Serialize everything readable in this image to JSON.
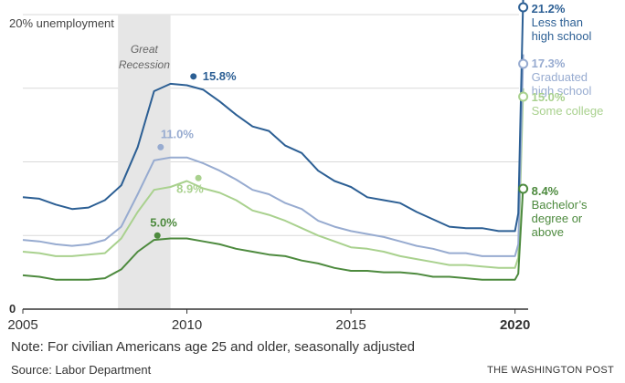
{
  "chart_data": {
    "type": "line",
    "ylabel": "20% unemployment",
    "xlim": [
      2005,
      2020.4
    ],
    "ylim": [
      0,
      20
    ],
    "grid": true,
    "x_ticks": [
      {
        "value": 2005,
        "label": "2005",
        "bold": false
      },
      {
        "value": 2010,
        "label": "2010",
        "bold": false
      },
      {
        "value": 2015,
        "label": "2015",
        "bold": false
      },
      {
        "value": 2020,
        "label": "2020",
        "bold": true
      }
    ],
    "y_tick_zero": "0",
    "y_gridlines": [
      0,
      5,
      10,
      15,
      20
    ],
    "shaded_period": {
      "start": 2007.9,
      "end": 2009.5,
      "label_line1": "Great",
      "label_line2": "Recession"
    },
    "series": [
      {
        "name": "Less than high school",
        "label_lines": [
          "Less than",
          "high school"
        ],
        "end_value": 21.2,
        "end_label": "21.2%",
        "peak": {
          "x": 2010.2,
          "y": 15.8,
          "label": "15.8%"
        },
        "color": "#2c5f94",
        "x": [
          2005.0,
          2005.5,
          2006.0,
          2006.5,
          2007.0,
          2007.5,
          2008.0,
          2008.5,
          2009.0,
          2009.5,
          2010.0,
          2010.5,
          2011.0,
          2011.5,
          2012.0,
          2012.5,
          2013.0,
          2013.5,
          2014.0,
          2014.5,
          2015.0,
          2015.5,
          2016.0,
          2016.5,
          2017.0,
          2017.5,
          2018.0,
          2018.5,
          2019.0,
          2019.5,
          2020.0,
          2020.1,
          2020.25
        ],
        "y": [
          7.6,
          7.5,
          7.1,
          6.8,
          6.9,
          7.4,
          8.4,
          11.0,
          14.8,
          15.3,
          15.2,
          14.9,
          14.1,
          13.2,
          12.4,
          12.1,
          11.1,
          10.6,
          9.4,
          8.7,
          8.3,
          7.6,
          7.4,
          7.2,
          6.6,
          6.1,
          5.6,
          5.5,
          5.5,
          5.3,
          5.3,
          6.5,
          21.2
        ]
      },
      {
        "name": "Graduated high school",
        "label_lines": [
          "Graduated",
          "high school"
        ],
        "end_value": 17.3,
        "end_label": "17.3%",
        "peak": {
          "x": 2009.2,
          "y": 11.0,
          "label": "11.0%"
        },
        "color": "#97abd0",
        "x": [
          2005.0,
          2005.5,
          2006.0,
          2006.5,
          2007.0,
          2007.5,
          2008.0,
          2008.5,
          2009.0,
          2009.5,
          2010.0,
          2010.5,
          2011.0,
          2011.5,
          2012.0,
          2012.5,
          2013.0,
          2013.5,
          2014.0,
          2014.5,
          2015.0,
          2015.5,
          2016.0,
          2016.5,
          2017.0,
          2017.5,
          2018.0,
          2018.5,
          2019.0,
          2019.5,
          2020.0,
          2020.1,
          2020.25
        ],
        "y": [
          4.7,
          4.6,
          4.4,
          4.3,
          4.4,
          4.7,
          5.6,
          7.8,
          10.1,
          10.3,
          10.3,
          9.9,
          9.4,
          8.8,
          8.1,
          7.8,
          7.2,
          6.8,
          6.0,
          5.6,
          5.3,
          5.1,
          4.9,
          4.6,
          4.3,
          4.1,
          3.8,
          3.8,
          3.6,
          3.6,
          3.6,
          4.4,
          17.3
        ]
      },
      {
        "name": "Some college",
        "label_lines": [
          "Some college"
        ],
        "end_value": 15.0,
        "end_label": "15.0%",
        "peak": {
          "x": 2010.35,
          "y": 8.9,
          "label": "8.9%"
        },
        "color": "#a9d18e",
        "x": [
          2005.0,
          2005.5,
          2006.0,
          2006.5,
          2007.0,
          2007.5,
          2008.0,
          2008.5,
          2009.0,
          2009.5,
          2010.0,
          2010.5,
          2011.0,
          2011.5,
          2012.0,
          2012.5,
          2013.0,
          2013.5,
          2014.0,
          2014.5,
          2015.0,
          2015.5,
          2016.0,
          2016.5,
          2017.0,
          2017.5,
          2018.0,
          2018.5,
          2019.0,
          2019.5,
          2020.0,
          2020.1,
          2020.25
        ],
        "y": [
          3.9,
          3.8,
          3.6,
          3.6,
          3.7,
          3.8,
          4.8,
          6.6,
          8.1,
          8.3,
          8.7,
          8.2,
          7.9,
          7.4,
          6.7,
          6.4,
          6.0,
          5.5,
          5.0,
          4.6,
          4.2,
          4.1,
          3.9,
          3.6,
          3.4,
          3.2,
          3.0,
          3.0,
          2.9,
          2.8,
          2.8,
          3.5,
          15.0
        ]
      },
      {
        "name": "Bachelor's degree or above",
        "label_lines": [
          "Bachelor’s",
          "degree or",
          "above"
        ],
        "end_value": 8.4,
        "end_label": "8.4%",
        "peak": {
          "x": 2009.1,
          "y": 5.0,
          "label": "5.0%"
        },
        "color": "#4d8a3e",
        "x": [
          2005.0,
          2005.5,
          2006.0,
          2006.5,
          2007.0,
          2007.5,
          2008.0,
          2008.5,
          2009.0,
          2009.5,
          2010.0,
          2010.5,
          2011.0,
          2011.5,
          2012.0,
          2012.5,
          2013.0,
          2013.5,
          2014.0,
          2014.5,
          2015.0,
          2015.5,
          2016.0,
          2016.5,
          2017.0,
          2017.5,
          2018.0,
          2018.5,
          2019.0,
          2019.5,
          2020.0,
          2020.1,
          2020.25
        ],
        "y": [
          2.3,
          2.2,
          2.0,
          2.0,
          2.0,
          2.1,
          2.7,
          3.9,
          4.7,
          4.8,
          4.8,
          4.6,
          4.4,
          4.1,
          3.9,
          3.7,
          3.6,
          3.3,
          3.1,
          2.8,
          2.6,
          2.6,
          2.5,
          2.5,
          2.4,
          2.2,
          2.2,
          2.1,
          2.0,
          2.0,
          2.0,
          2.4,
          8.4
        ]
      }
    ]
  },
  "note": "Note: For civilian Americans age 25 and older, seasonally adjusted",
  "source": "Source: Labor Department",
  "credit": "THE WASHINGTON POST"
}
